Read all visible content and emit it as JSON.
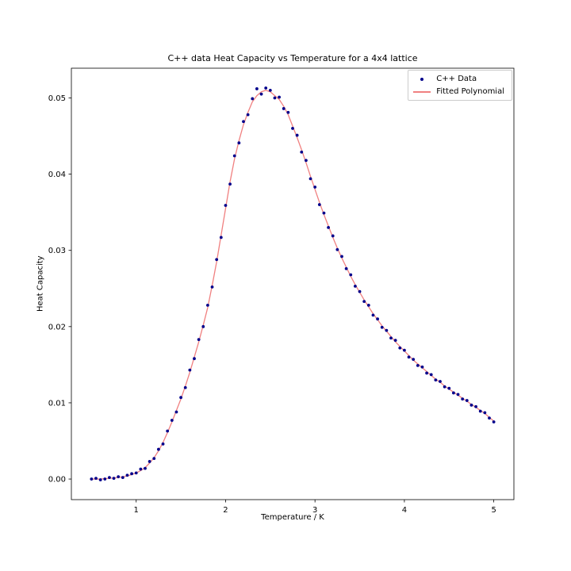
{
  "chart_data": {
    "type": "scatter",
    "title": "C++ data Heat Capacity vs Temperature for a 4x4 lattice",
    "xlabel": "Temperature / K",
    "ylabel": "Heat Capacity",
    "xlim": [
      0.275,
      5.225
    ],
    "ylim": [
      -0.0027,
      0.0539
    ],
    "grid": false,
    "legend_position": "upper right",
    "x_ticks": [
      {
        "v": 1,
        "label": "1"
      },
      {
        "v": 2,
        "label": "2"
      },
      {
        "v": 3,
        "label": "3"
      },
      {
        "v": 4,
        "label": "4"
      },
      {
        "v": 5,
        "label": "5"
      }
    ],
    "y_ticks": [
      {
        "v": 0.0,
        "label": "0.00"
      },
      {
        "v": 0.01,
        "label": "0.01"
      },
      {
        "v": 0.02,
        "label": "0.02"
      },
      {
        "v": 0.03,
        "label": "0.03"
      },
      {
        "v": 0.04,
        "label": "0.04"
      },
      {
        "v": 0.05,
        "label": "0.05"
      }
    ],
    "x": [
      0.5,
      0.55,
      0.6,
      0.65,
      0.7,
      0.75,
      0.8,
      0.85,
      0.9,
      0.95,
      1.0,
      1.05,
      1.1,
      1.15,
      1.2,
      1.25,
      1.3,
      1.35,
      1.4,
      1.45,
      1.5,
      1.55,
      1.6,
      1.65,
      1.7,
      1.75,
      1.8,
      1.85,
      1.9,
      1.95,
      2.0,
      2.05,
      2.1,
      2.15,
      2.2,
      2.25,
      2.3,
      2.35,
      2.4,
      2.45,
      2.5,
      2.55,
      2.6,
      2.65,
      2.7,
      2.75,
      2.8,
      2.85,
      2.9,
      2.95,
      3.0,
      3.05,
      3.1,
      3.15,
      3.2,
      3.25,
      3.3,
      3.35,
      3.4,
      3.45,
      3.5,
      3.55,
      3.6,
      3.65,
      3.7,
      3.75,
      3.8,
      3.85,
      3.9,
      3.95,
      4.0,
      4.05,
      4.1,
      4.15,
      4.2,
      4.25,
      4.3,
      4.35,
      4.4,
      4.45,
      4.5,
      4.55,
      4.6,
      4.65,
      4.7,
      4.75,
      4.8,
      4.85,
      4.9,
      4.95,
      5.0
    ],
    "series": [
      {
        "name": "C++ Data",
        "type": "scatter",
        "color": "#00008B",
        "marker": "dot",
        "values": [
          0.0,
          0.0001,
          -0.0001,
          0.0,
          0.0002,
          0.0001,
          0.0003,
          0.0002,
          0.0005,
          0.0007,
          0.0008,
          0.0013,
          0.0014,
          0.0023,
          0.0027,
          0.0039,
          0.0046,
          0.0063,
          0.0077,
          0.0088,
          0.0107,
          0.012,
          0.0143,
          0.0158,
          0.0183,
          0.02,
          0.0228,
          0.0252,
          0.0288,
          0.0317,
          0.0359,
          0.0387,
          0.0424,
          0.0441,
          0.0469,
          0.0478,
          0.0499,
          0.0512,
          0.0505,
          0.0513,
          0.051,
          0.05,
          0.0501,
          0.0486,
          0.0481,
          0.046,
          0.0451,
          0.0429,
          0.0418,
          0.0394,
          0.0383,
          0.036,
          0.0349,
          0.033,
          0.0319,
          0.0301,
          0.0292,
          0.0276,
          0.0268,
          0.0253,
          0.0246,
          0.0233,
          0.0228,
          0.0215,
          0.021,
          0.0199,
          0.0195,
          0.0185,
          0.0182,
          0.0172,
          0.0169,
          0.016,
          0.0157,
          0.0149,
          0.0147,
          0.0139,
          0.0137,
          0.013,
          0.0128,
          0.0121,
          0.0119,
          0.0113,
          0.0111,
          0.0105,
          0.0103,
          0.0097,
          0.0095,
          0.0089,
          0.0087,
          0.008,
          0.0075
        ]
      },
      {
        "name": "Fitted Polynomial",
        "type": "line",
        "color": "#F08080",
        "values": [
          0.0,
          0.0,
          0.0,
          5e-05,
          0.0001,
          0.00015,
          0.0002,
          0.0003,
          0.0004,
          0.0006,
          0.0008,
          0.0011,
          0.0015,
          0.0021,
          0.0028,
          0.0037,
          0.0048,
          0.0061,
          0.0075,
          0.009,
          0.0105,
          0.0122,
          0.014,
          0.016,
          0.018,
          0.0202,
          0.0225,
          0.0254,
          0.0285,
          0.032,
          0.0355,
          0.039,
          0.042,
          0.0444,
          0.0465,
          0.0481,
          0.0495,
          0.0503,
          0.0508,
          0.051,
          0.0508,
          0.0503,
          0.0498,
          0.0489,
          0.0478,
          0.0463,
          0.0448,
          0.0432,
          0.0415,
          0.0397,
          0.038,
          0.0363,
          0.0347,
          0.0332,
          0.0317,
          0.0303,
          0.029,
          0.0278,
          0.0266,
          0.0255,
          0.0245,
          0.0235,
          0.0226,
          0.0217,
          0.0209,
          0.0201,
          0.0194,
          0.0187,
          0.018,
          0.0174,
          0.0168,
          0.0162,
          0.0156,
          0.0151,
          0.0146,
          0.0141,
          0.0136,
          0.0131,
          0.0127,
          0.0122,
          0.0118,
          0.0114,
          0.011,
          0.0106,
          0.0102,
          0.0098,
          0.0094,
          0.009,
          0.0086,
          0.0081,
          0.0076
        ]
      }
    ]
  }
}
